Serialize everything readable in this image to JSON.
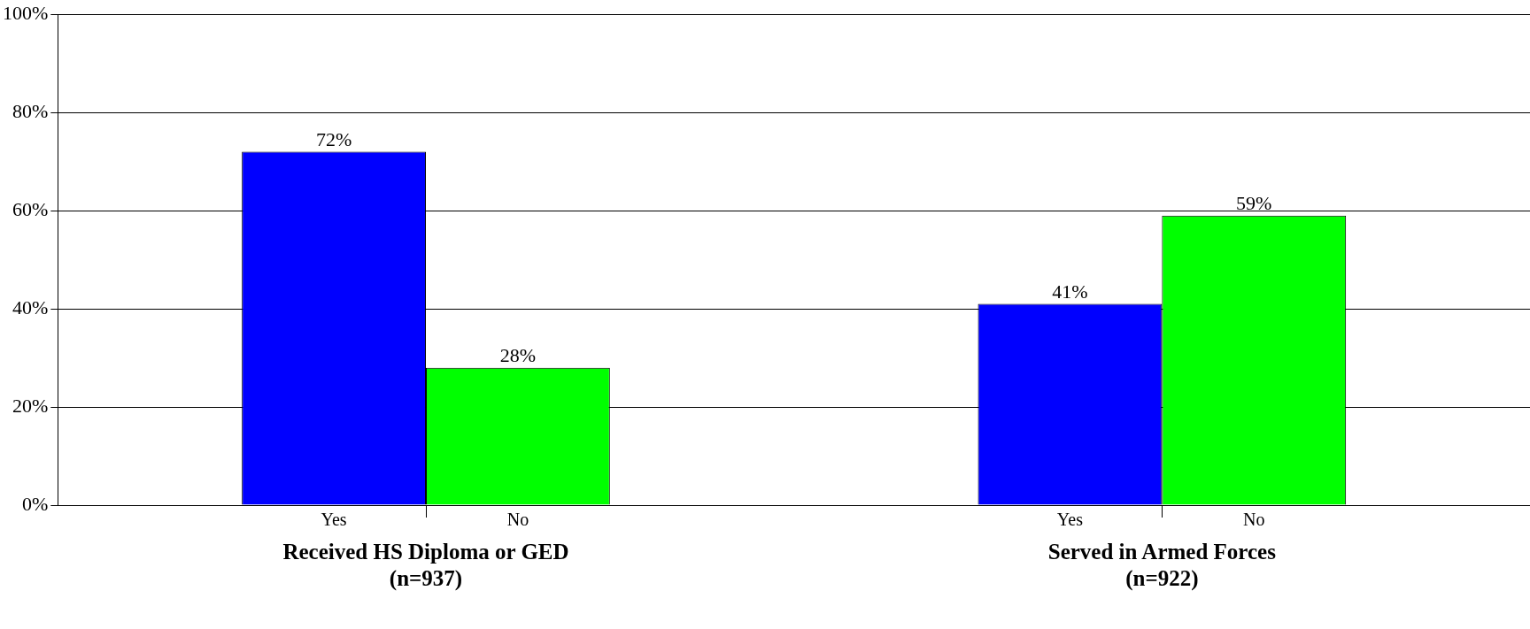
{
  "chart_data": {
    "type": "bar",
    "categories": [
      "Received HS Diploma or GED\n(n=937)",
      "Served in Armed Forces\n(n=922)"
    ],
    "series": [
      {
        "name": "Yes",
        "color": "#0000ff",
        "values": [
          72,
          41
        ],
        "value_labels": [
          "72%",
          "41%"
        ]
      },
      {
        "name": "No",
        "color": "#00ff00",
        "values": [
          28,
          59
        ],
        "value_labels": [
          "28%",
          "59%"
        ]
      }
    ],
    "ylim": [
      0,
      100
    ],
    "yticks": [
      {
        "value": 0,
        "label": "0%"
      },
      {
        "value": 20,
        "label": "20%"
      },
      {
        "value": 40,
        "label": "40%"
      },
      {
        "value": 60,
        "label": "60%"
      },
      {
        "value": 80,
        "label": "80%"
      },
      {
        "value": 100,
        "label": "100%"
      }
    ],
    "grid": "y",
    "legend": false
  }
}
